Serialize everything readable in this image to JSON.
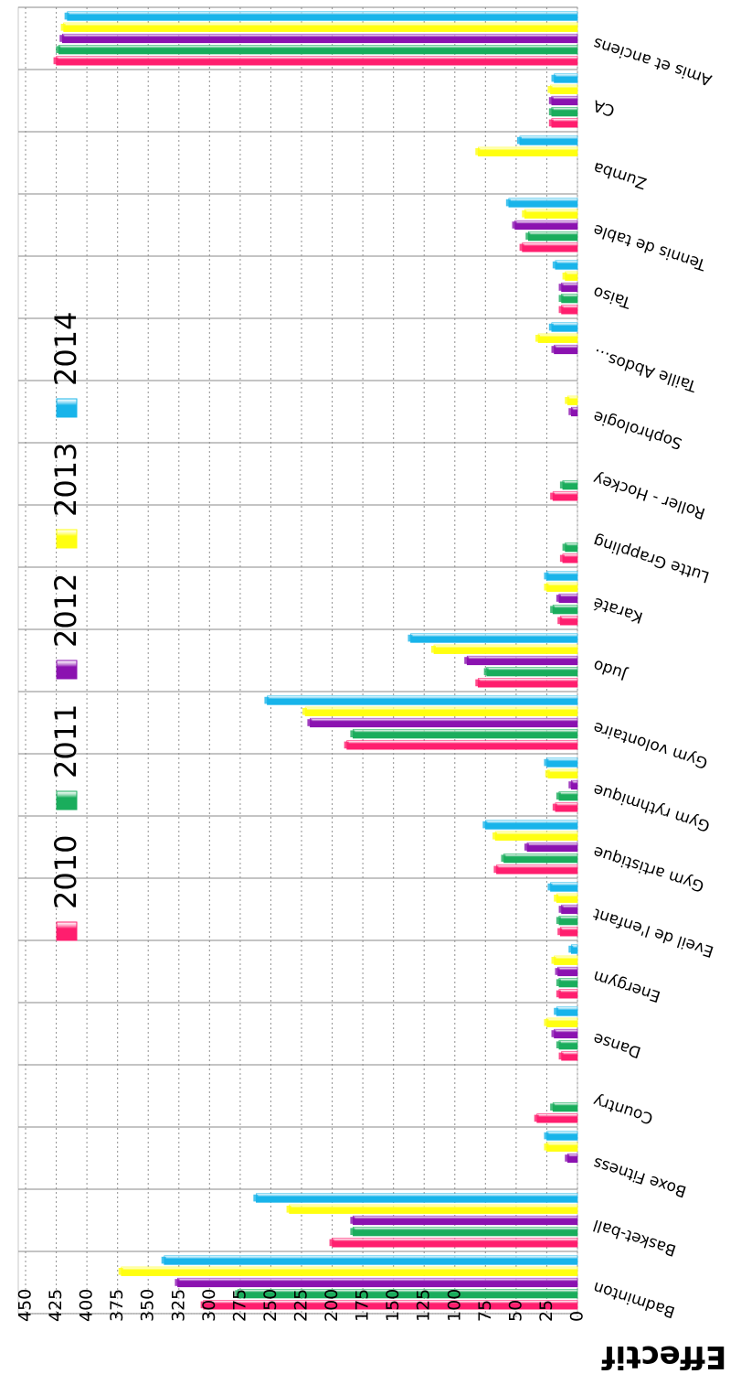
{
  "chart_data": {
    "type": "bar",
    "ylabel": "Effectif",
    "ylim": [
      0,
      450
    ],
    "yticks": [
      0,
      25,
      50,
      75,
      100,
      125,
      150,
      175,
      200,
      225,
      250,
      275,
      300,
      325,
      350,
      375,
      400,
      425,
      450
    ],
    "grid": true,
    "legend_position": "top-left",
    "categories": [
      "Badminton",
      "Basket-ball",
      "Boxe Fitness",
      "Country",
      "Danse",
      "Energym",
      "Eveil de l'enfant",
      "Gym artistique",
      "Gym rythmique",
      "Gym volontaire",
      "Judo",
      "Karaté",
      "Lutte Grappling",
      "Roller - Hockey",
      "Sophrologie",
      "Taille Abdos…",
      "Taiso",
      "Tennis de table",
      "Zumba",
      "CA",
      "Amis et anciens"
    ],
    "series": [
      {
        "name": "2010",
        "color": "#ff1e6e",
        "values": [
          305,
          200,
          0,
          33,
          13,
          15,
          14,
          66,
          18,
          188,
          81,
          14,
          12,
          20,
          0,
          0,
          13,
          45,
          0,
          21,
          425
        ]
      },
      {
        "name": "2011",
        "color": "#1aad5c",
        "values": [
          277,
          183,
          0,
          20,
          15,
          15,
          15,
          60,
          15,
          183,
          74,
          20,
          10,
          12,
          0,
          0,
          13,
          40,
          0,
          21,
          423
        ]
      },
      {
        "name": "2012",
        "color": "#8b12b0",
        "values": [
          326,
          183,
          8,
          0,
          19,
          16,
          13,
          41,
          5,
          218,
          90,
          15,
          0,
          0,
          5,
          19,
          13,
          51,
          0,
          21,
          420
        ]
      },
      {
        "name": "2013",
        "color": "#ffff10",
        "values": [
          372,
          235,
          25,
          0,
          25,
          19,
          17,
          67,
          24,
          222,
          117,
          25,
          0,
          0,
          8,
          32,
          10,
          43,
          81,
          22,
          419
        ]
      },
      {
        "name": "2014",
        "color": "#18b4ea",
        "values": [
          337,
          262,
          25,
          0,
          17,
          5,
          22,
          75,
          25,
          253,
          136,
          25,
          0,
          0,
          0,
          21,
          18,
          56,
          47,
          19,
          416
        ]
      }
    ]
  }
}
